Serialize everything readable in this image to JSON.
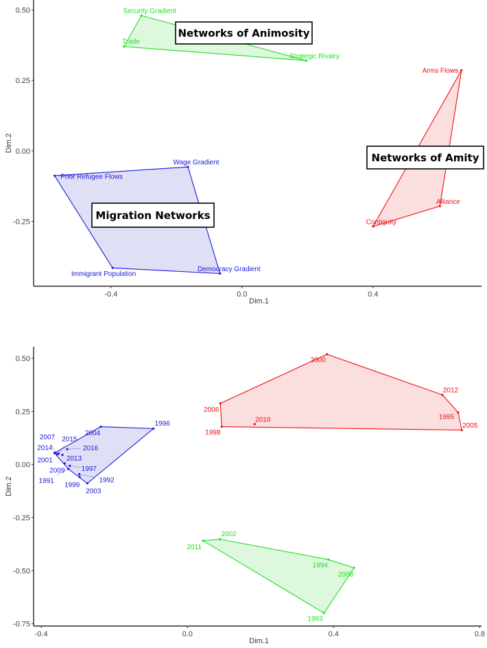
{
  "chart_data": [
    {
      "type": "scatter",
      "title": "",
      "xlabel": "Dim.1",
      "ylabel": "Dim.2",
      "xlim": [
        -0.636,
        0.731
      ],
      "ylim": [
        -0.48,
        0.535
      ],
      "grid": false,
      "xticks": [
        -0.4,
        0.0,
        0.4
      ],
      "xtick_labels": [
        "-0.4",
        "0.0",
        "0.4"
      ],
      "yticks": [
        -0.25,
        0.0,
        0.25,
        0.5
      ],
      "ytick_labels": [
        "-0.25",
        "0.00",
        "0.25",
        "0.50"
      ],
      "annotations": [
        "Networks of Animosity",
        "Networks of Amity",
        "Migration Networks"
      ],
      "series": [
        {
          "name": "Networks of Animosity",
          "color": "#22dd22",
          "points": [
            {
              "label": "Security Gradient",
              "x": -0.307,
              "y": 0.48
            },
            {
              "label": "Trade",
              "x": -0.36,
              "y": 0.37
            },
            {
              "label": "Strategic Rivalry",
              "x": 0.196,
              "y": 0.32
            }
          ]
        },
        {
          "name": "Networks of Amity",
          "color": "#ee1111",
          "points": [
            {
              "label": "Arms Flows",
              "x": 0.67,
              "y": 0.286
            },
            {
              "label": "Alliance",
              "x": 0.604,
              "y": -0.196
            },
            {
              "label": "Contiguity",
              "x": 0.4,
              "y": -0.268
            }
          ]
        },
        {
          "name": "Migration Networks",
          "color": "#1a1ad6",
          "points": [
            {
              "label": "Wage Gradient",
              "x": -0.165,
              "y": -0.057
            },
            {
              "label": "Prior Refugee Flows",
              "x": -0.572,
              "y": -0.088
            },
            {
              "label": "Immigrant Population",
              "x": -0.395,
              "y": -0.415
            },
            {
              "label": "Democracy Gradient",
              "x": -0.067,
              "y": -0.435
            }
          ]
        }
      ]
    },
    {
      "type": "scatter",
      "title": "",
      "xlabel": "Dim.1",
      "ylabel": "Dim.2",
      "xlim": [
        -0.421,
        0.805
      ],
      "ylim": [
        -0.761,
        0.555
      ],
      "grid": false,
      "xticks": [
        -0.4,
        0.0,
        0.4,
        0.8
      ],
      "xtick_labels": [
        "-0.4",
        "0.0",
        "0.4",
        "0.8"
      ],
      "yticks": [
        -0.75,
        -0.5,
        -0.25,
        0.0,
        0.25,
        0.5
      ],
      "ytick_labels": [
        "-0.75",
        "-0.50",
        "-0.25",
        "0.00",
        "0.25",
        "0.50"
      ],
      "annotations": [],
      "series": [
        {
          "name": "red cluster",
          "color": "#ee1111",
          "points": [
            {
              "label": "2000",
              "x": 0.382,
              "y": 0.519
            },
            {
              "label": "2012",
              "x": 0.698,
              "y": 0.328
            },
            {
              "label": "1995",
              "x": 0.741,
              "y": 0.245
            },
            {
              "label": "2005",
              "x": 0.751,
              "y": 0.162
            },
            {
              "label": "1998",
              "x": 0.094,
              "y": 0.178
            },
            {
              "label": "2006",
              "x": 0.09,
              "y": 0.288
            },
            {
              "label": "2010",
              "x": 0.184,
              "y": 0.19
            }
          ]
        },
        {
          "name": "green cluster",
          "color": "#22dd22",
          "points": [
            {
              "label": "2002",
              "x": 0.089,
              "y": -0.352
            },
            {
              "label": "2011",
              "x": 0.043,
              "y": -0.359
            },
            {
              "label": "1994",
              "x": 0.386,
              "y": -0.448
            },
            {
              "label": "2008",
              "x": 0.456,
              "y": -0.487
            },
            {
              "label": "1993",
              "x": 0.374,
              "y": -0.7
            }
          ]
        },
        {
          "name": "blue cluster",
          "color": "#1a1ad6",
          "points": [
            {
              "label": "1996",
              "x": -0.093,
              "y": 0.169
            },
            {
              "label": "2004",
              "x": -0.237,
              "y": 0.178
            },
            {
              "label": "2007",
              "x": -0.361,
              "y": 0.056
            },
            {
              "label": "2014",
              "x": -0.364,
              "y": 0.054
            },
            {
              "label": "2001",
              "x": -0.356,
              "y": 0.048
            },
            {
              "label": "2015",
              "x": -0.353,
              "y": 0.052
            },
            {
              "label": "2016",
              "x": -0.329,
              "y": 0.072
            },
            {
              "label": "2013",
              "x": -0.342,
              "y": 0.045
            },
            {
              "label": "2009",
              "x": -0.336,
              "y": 0.005
            },
            {
              "label": "1997",
              "x": -0.322,
              "y": -0.006
            },
            {
              "label": "1991",
              "x": -0.326,
              "y": -0.021
            },
            {
              "label": "1999",
              "x": -0.295,
              "y": -0.059
            },
            {
              "label": "1992",
              "x": -0.296,
              "y": -0.046
            },
            {
              "label": "2003",
              "x": -0.274,
              "y": -0.089
            }
          ]
        }
      ]
    }
  ]
}
